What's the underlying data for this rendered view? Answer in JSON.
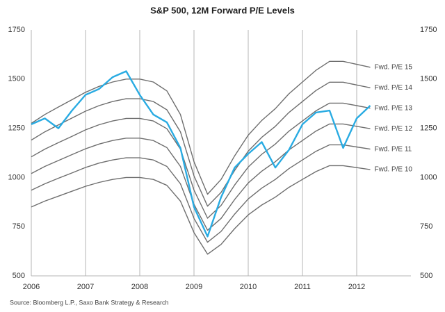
{
  "chart_data": {
    "type": "line",
    "title": "S&P 500, 12M Forward P/E Levels",
    "source": "Source: Bloomberg L.P., Saxo Bank Strategy & Research",
    "x": [
      2006,
      2006.25,
      2006.5,
      2006.75,
      2007,
      2007.25,
      2007.5,
      2007.75,
      2008,
      2008.25,
      2008.5,
      2008.75,
      2009,
      2009.25,
      2009.5,
      2009.75,
      2010,
      2010.25,
      2010.5,
      2010.75,
      2011,
      2011.25,
      2011.5,
      2011.75,
      2012,
      2012.25
    ],
    "xlim": [
      2006,
      2013
    ],
    "xticks": [
      2006,
      2007,
      2008,
      2009,
      2010,
      2011,
      2012
    ],
    "ylim": [
      500,
      1750
    ],
    "yticks": [
      500,
      750,
      1000,
      1250,
      1500,
      1750
    ],
    "y2lim": [
      500,
      1750
    ],
    "y2ticks": [
      500,
      750,
      1000,
      1250,
      1500,
      1750
    ],
    "grid": "x",
    "series": [
      {
        "name": "Fwd. P/E 15",
        "color": "#6e6e6e",
        "values": [
          1275,
          1320,
          1358,
          1395,
          1433,
          1463,
          1485,
          1500,
          1500,
          1485,
          1440,
          1320,
          1080,
          915,
          990,
          1110,
          1215,
          1290,
          1350,
          1425,
          1485,
          1545,
          1590,
          1590,
          1575,
          1560
        ]
      },
      {
        "name": "Fwd. P/E 14",
        "color": "#6e6e6e",
        "values": [
          1190,
          1232,
          1267,
          1302,
          1337,
          1365,
          1386,
          1400,
          1400,
          1386,
          1344,
          1232,
          1008,
          854,
          924,
          1036,
          1134,
          1204,
          1260,
          1330,
          1386,
          1442,
          1484,
          1484,
          1470,
          1456
        ]
      },
      {
        "name": "Fwd. P/E 13",
        "color": "#6e6e6e",
        "values": [
          1105,
          1144,
          1177,
          1209,
          1242,
          1268,
          1287,
          1300,
          1300,
          1287,
          1248,
          1144,
          936,
          793,
          858,
          962,
          1053,
          1118,
          1170,
          1235,
          1287,
          1339,
          1378,
          1378,
          1365,
          1352
        ]
      },
      {
        "name": "Fwd. P/E 12",
        "color": "#6e6e6e",
        "values": [
          1020,
          1056,
          1086,
          1116,
          1146,
          1170,
          1188,
          1200,
          1200,
          1188,
          1152,
          1056,
          864,
          732,
          792,
          888,
          972,
          1032,
          1080,
          1140,
          1188,
          1236,
          1272,
          1272,
          1260,
          1248
        ]
      },
      {
        "name": "Fwd. P/E 11",
        "color": "#6e6e6e",
        "values": [
          935,
          968,
          996,
          1023,
          1051,
          1073,
          1089,
          1100,
          1100,
          1089,
          1056,
          968,
          792,
          671,
          726,
          814,
          891,
          946,
          990,
          1045,
          1089,
          1133,
          1166,
          1166,
          1155,
          1144
        ]
      },
      {
        "name": "Fwd. P/E 10",
        "color": "#6e6e6e",
        "values": [
          850,
          880,
          905,
          930,
          955,
          975,
          990,
          1000,
          1000,
          990,
          960,
          880,
          720,
          610,
          660,
          740,
          810,
          860,
          900,
          950,
          990,
          1030,
          1060,
          1060,
          1050,
          1040
        ]
      },
      {
        "color": "#29abe2",
        "values": [
          1270,
          1300,
          1250,
          1340,
          1420,
          1450,
          1510,
          1540,
          1420,
          1320,
          1280,
          1150,
          850,
          700,
          900,
          1050,
          1120,
          1180,
          1050,
          1140,
          1270,
          1330,
          1340,
          1150,
          1300,
          1365
        ]
      }
    ]
  }
}
